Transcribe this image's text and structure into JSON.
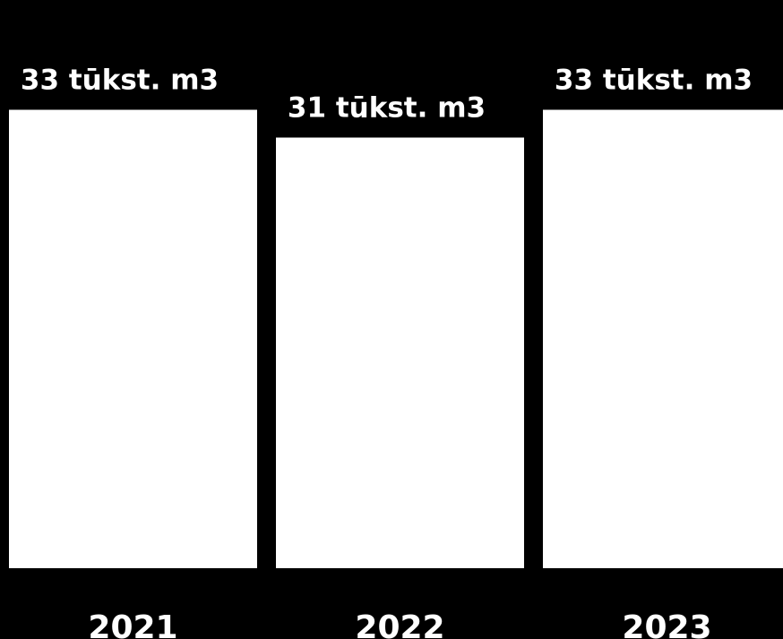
{
  "chart_data": {
    "type": "bar",
    "categories": [
      "2021",
      "2022",
      "2023"
    ],
    "values": [
      33,
      31,
      33
    ],
    "data_labels": [
      "33 tūkst. m3",
      "31 tūkst. m3",
      "33 tūkst. m3"
    ],
    "title": "",
    "xlabel": "",
    "ylabel": "",
    "ylim": [
      0,
      36.7
    ],
    "grid": false,
    "legend": "none",
    "colors": {
      "background": "#000000",
      "bar": "#ffffff",
      "text": "#ffffff"
    }
  }
}
